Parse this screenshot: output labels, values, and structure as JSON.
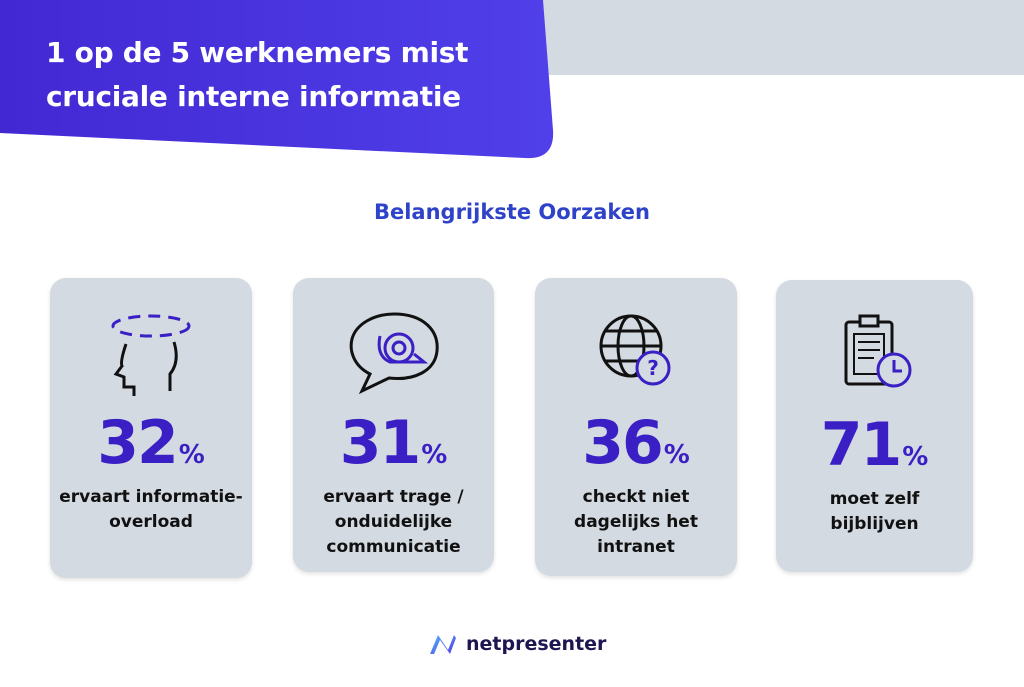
{
  "header": {
    "title_line1": "1 op de 5 werknemers mist",
    "title_line2": "cruciale interne informatie"
  },
  "subtitle": "Belangrijkste Oorzaken",
  "colors": {
    "banner": "#4a32dc",
    "accent": "#3a1fc4",
    "card": "#d3dae2",
    "subtitle": "#2f43c8"
  },
  "cards": [
    {
      "icon": "head-overload-icon",
      "value": "32",
      "unit": "%",
      "desc": "ervaart informatie-overload"
    },
    {
      "icon": "snail-speech-bubble-icon",
      "value": "31",
      "unit": "%",
      "desc": "ervaart trage / onduidelijke communicatie"
    },
    {
      "icon": "globe-question-icon",
      "value": "36",
      "unit": "%",
      "desc": "checkt niet dagelijks het intranet"
    },
    {
      "icon": "clipboard-clock-icon",
      "value": "71",
      "unit": "%",
      "desc": "moet zelf bijblijven"
    }
  ],
  "footer": {
    "brand": "netpresenter"
  }
}
